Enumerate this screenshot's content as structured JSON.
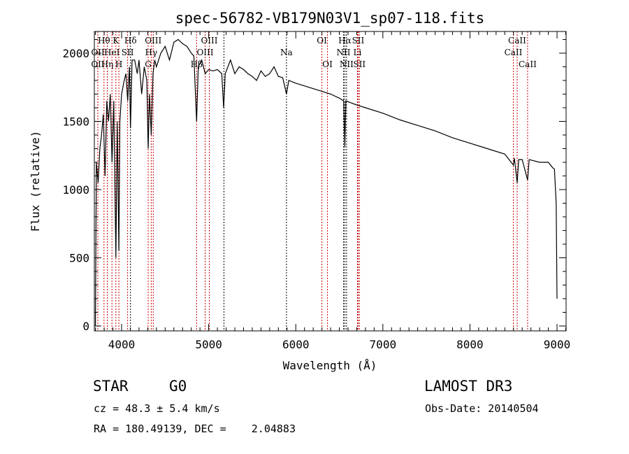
{
  "chart_data": {
    "type": "line",
    "title": "spec-56782-VB179N03V1_sp07-118.fits",
    "xlabel": "Wavelength (Å)",
    "ylabel": "Flux (relative)",
    "xlim": [
      3687,
      9104
    ],
    "ylim": [
      -36,
      2159
    ],
    "xticks": [
      4000,
      5000,
      6000,
      7000,
      8000,
      9000
    ],
    "xtick_labels": [
      "4000",
      "5000",
      "6000",
      "7000",
      "8000",
      "9000"
    ],
    "yticks": [
      0,
      500,
      1000,
      1500,
      2000
    ],
    "ytick_labels": [
      "0",
      "500",
      "1000",
      "1500",
      "2000"
    ],
    "grid": false,
    "series": [
      {
        "name": "spectrum",
        "color": "#000000",
        "x": [
          3700,
          3705,
          3710,
          3730,
          3750,
          3770,
          3790,
          3810,
          3830,
          3850,
          3870,
          3890,
          3910,
          3934,
          3950,
          3969,
          3980,
          4000,
          4030,
          4050,
          4070,
          4090,
          4102,
          4120,
          4150,
          4180,
          4200,
          4230,
          4260,
          4290,
          4305,
          4320,
          4340,
          4360,
          4380,
          4400,
          4450,
          4500,
          4550,
          4600,
          4650,
          4700,
          4750,
          4800,
          4830,
          4861,
          4880,
          4920,
          4960,
          5000,
          5050,
          5100,
          5150,
          5172,
          5190,
          5250,
          5300,
          5350,
          5400,
          5450,
          5500,
          5550,
          5600,
          5650,
          5700,
          5750,
          5800,
          5850,
          5893,
          5920,
          6000,
          6100,
          6200,
          6300,
          6400,
          6500,
          6550,
          6563,
          6575,
          6700,
          6800,
          7000,
          7200,
          7400,
          7600,
          7800,
          8000,
          8200,
          8400,
          8498,
          8510,
          8542,
          8560,
          8600,
          8662,
          8680,
          8800,
          8900,
          8950,
          8970,
          8990,
          9000
        ],
        "y": [
          0,
          600,
          1200,
          1050,
          1300,
          1400,
          1550,
          1100,
          1650,
          1500,
          1700,
          1200,
          1650,
          500,
          1500,
          550,
          1500,
          1700,
          1800,
          1850,
          1650,
          1900,
          1450,
          1950,
          1950,
          1850,
          1950,
          1700,
          1900,
          1800,
          1300,
          1700,
          1400,
          1850,
          1950,
          1900,
          2000,
          2050,
          1950,
          2080,
          2100,
          2070,
          2050,
          2000,
          1980,
          1500,
          1900,
          1950,
          1850,
          1880,
          1870,
          1880,
          1850,
          1600,
          1850,
          1950,
          1850,
          1900,
          1880,
          1850,
          1830,
          1800,
          1870,
          1830,
          1850,
          1900,
          1830,
          1820,
          1700,
          1800,
          1780,
          1760,
          1740,
          1720,
          1700,
          1670,
          1650,
          1310,
          1650,
          1620,
          1600,
          1560,
          1510,
          1470,
          1430,
          1380,
          1340,
          1300,
          1260,
          1180,
          1230,
          1050,
          1220,
          1220,
          1070,
          1220,
          1200,
          1200,
          1160,
          1150,
          900,
          200
        ]
      }
    ],
    "lines": [
      {
        "label": "OII",
        "wave": 3727,
        "row": 1,
        "color": "#cc0000"
      },
      {
        "label": "Hθ",
        "wave": 3798,
        "row": 0,
        "color": "#cc0000"
      },
      {
        "label": "OII",
        "wave": 3727,
        "row": 2,
        "color": "#cc0000"
      },
      {
        "label": "Hη",
        "wave": 3835,
        "row": 2,
        "color": "#cc0000"
      },
      {
        "label": "HeI",
        "wave": 3889,
        "row": 1,
        "color": "#cc0000"
      },
      {
        "label": "K",
        "wave": 3934,
        "row": 0,
        "color": "#cc0000"
      },
      {
        "label": "H",
        "wave": 3969,
        "row": 2,
        "color": "#cc0000"
      },
      {
        "label": "SII",
        "wave": 4069,
        "row": 1,
        "color": "#cc0000"
      },
      {
        "label": "Hδ",
        "wave": 4102,
        "row": 0,
        "color": "#000000"
      },
      {
        "label": "G",
        "wave": 4305,
        "row": 2,
        "color": "#cc0000"
      },
      {
        "label": "Hγ",
        "wave": 4340,
        "row": 1,
        "color": "#cc0000"
      },
      {
        "label": "OIII",
        "wave": 4363,
        "row": 0,
        "color": "#cc0000"
      },
      {
        "label": "Hβ",
        "wave": 4861,
        "row": 2,
        "color": "#cc0000"
      },
      {
        "label": "OIII",
        "wave": 4959,
        "row": 1,
        "color": "#cc0000"
      },
      {
        "label": "OIII",
        "wave": 5007,
        "row": 0,
        "color": "#cc0000"
      },
      {
        "label": "",
        "wave": 5175,
        "row": 0,
        "color": "#000000"
      },
      {
        "label": "Na",
        "wave": 5893,
        "row": 1,
        "color": "#000000"
      },
      {
        "label": "OI",
        "wave": 6300,
        "row": 0,
        "color": "#cc0000"
      },
      {
        "label": "OI",
        "wave": 6364,
        "row": 2,
        "color": "#cc0000"
      },
      {
        "label": "NII",
        "wave": 6548,
        "row": 1,
        "color": "#000000"
      },
      {
        "label": "Hα",
        "wave": 6563,
        "row": 0,
        "color": "#000000"
      },
      {
        "label": "NII",
        "wave": 6583,
        "row": 2,
        "color": "#000000"
      },
      {
        "label": "Li",
        "wave": 6708,
        "row": 1,
        "color": "#cc0000"
      },
      {
        "label": "SII",
        "wave": 6716,
        "row": 0,
        "color": "#cc0000"
      },
      {
        "label": "SII",
        "wave": 6731,
        "row": 2,
        "color": "#cc0000"
      },
      {
        "label": "CaII",
        "wave": 8498,
        "row": 1,
        "color": "#cc0000"
      },
      {
        "label": "CaII",
        "wave": 8542,
        "row": 0,
        "color": "#cc0000"
      },
      {
        "label": "CaII",
        "wave": 8662,
        "row": 2,
        "color": "#cc0000"
      }
    ]
  },
  "info": {
    "class": "STAR",
    "subclass": "G0",
    "cz": "cz = 48.3 ± 5.4 km/s",
    "coords": "RA = 180.49139, DEC =    2.04883",
    "survey": "LAMOST DR3",
    "obs_date": "Obs-Date: 20140504"
  }
}
